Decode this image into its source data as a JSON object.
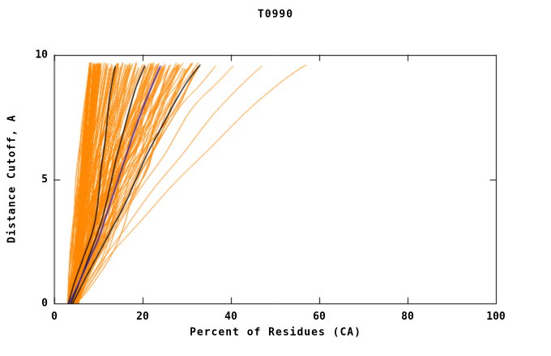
{
  "page": {
    "background": "#ffffff"
  },
  "chart_data": {
    "type": "line",
    "title": "T0990",
    "xlabel": "Percent of Residues (CA)",
    "ylabel": "Distance Cutoff, A",
    "xlim": [
      0,
      100
    ],
    "ylim": [
      0,
      10
    ],
    "x_ticks": [
      0,
      20,
      40,
      60,
      80,
      100
    ],
    "y_ticks": [
      0,
      5,
      10
    ],
    "grid": false,
    "legend": null,
    "colors": {
      "bundle": "#ff8700",
      "outlier": "#ff8700",
      "highlight": "#000000",
      "reference": "#2222cc",
      "axis": "#000000",
      "text": "#000000"
    },
    "bundle": {
      "count": 135,
      "seed": 7,
      "x_start_range": [
        3.0,
        5.5
      ],
      "x_end_min": 8,
      "x_end_max": 33,
      "skew": 1.8,
      "top_y_range": [
        9.4,
        9.7
      ]
    },
    "outlier_series": [
      {
        "name": "orange-outlier-1",
        "points": [
          [
            4.5,
            0
          ],
          [
            8,
            1.5
          ],
          [
            12,
            3
          ],
          [
            17,
            4.5
          ],
          [
            22,
            6
          ],
          [
            28,
            7.8
          ],
          [
            33,
            8.8
          ],
          [
            36.5,
            9.55
          ]
        ]
      },
      {
        "name": "orange-outlier-2",
        "points": [
          [
            4.8,
            0
          ],
          [
            9,
            1.5
          ],
          [
            14,
            3
          ],
          [
            19,
            4.5
          ],
          [
            25,
            6
          ],
          [
            31,
            7.8
          ],
          [
            37,
            8.9
          ],
          [
            40.5,
            9.55
          ]
        ]
      },
      {
        "name": "orange-outlier-3",
        "points": [
          [
            5,
            0
          ],
          [
            10,
            1.5
          ],
          [
            16,
            3
          ],
          [
            22,
            4.5
          ],
          [
            29,
            6
          ],
          [
            36,
            7.6
          ],
          [
            43,
            8.9
          ],
          [
            47,
            9.55
          ]
        ]
      },
      {
        "name": "orange-outlier-4",
        "points": [
          [
            5.2,
            0
          ],
          [
            12,
            1.8
          ],
          [
            19,
            3.2
          ],
          [
            27,
            4.8
          ],
          [
            35,
            6.2
          ],
          [
            44,
            7.8
          ],
          [
            52,
            9.0
          ],
          [
            57,
            9.6
          ]
        ]
      }
    ],
    "highlight_series": [
      {
        "name": "black-model-1",
        "points": [
          [
            3.2,
            0
          ],
          [
            4.5,
            0.8
          ],
          [
            6.5,
            1.8
          ],
          [
            8.5,
            2.8
          ],
          [
            9.5,
            3.6
          ],
          [
            10.2,
            4.6
          ],
          [
            10.6,
            5.4
          ],
          [
            11.4,
            6.4
          ],
          [
            12.0,
            7.4
          ],
          [
            12.6,
            8.4
          ],
          [
            13.8,
            9.55
          ]
        ]
      },
      {
        "name": "black-model-2",
        "points": [
          [
            3.8,
            0
          ],
          [
            6,
            1
          ],
          [
            8.5,
            2.2
          ],
          [
            10.5,
            3.2
          ],
          [
            12,
            4.2
          ],
          [
            13,
            5
          ],
          [
            14,
            5.8
          ],
          [
            15.5,
            6.8
          ],
          [
            17,
            7.8
          ],
          [
            18.5,
            8.7
          ],
          [
            20.5,
            9.55
          ]
        ]
      },
      {
        "name": "black-model-3",
        "points": [
          [
            4.2,
            0
          ],
          [
            7,
            1
          ],
          [
            10,
            2
          ],
          [
            13,
            3
          ],
          [
            16,
            4
          ],
          [
            18.5,
            5
          ],
          [
            21,
            6
          ],
          [
            24,
            7
          ],
          [
            27,
            8
          ],
          [
            30,
            8.9
          ],
          [
            33,
            9.6
          ]
        ]
      }
    ],
    "reference_series": [
      {
        "name": "blue-model",
        "points": [
          [
            3.4,
            0
          ],
          [
            5.5,
            0.8
          ],
          [
            8,
            1.8
          ],
          [
            10,
            2.6
          ],
          [
            11.5,
            3.4
          ],
          [
            13,
            4.2
          ],
          [
            14.5,
            5
          ],
          [
            16,
            5.8
          ],
          [
            17.5,
            6.6
          ],
          [
            19.5,
            7.6
          ],
          [
            21.5,
            8.5
          ],
          [
            24,
            9.55
          ]
        ]
      }
    ]
  }
}
